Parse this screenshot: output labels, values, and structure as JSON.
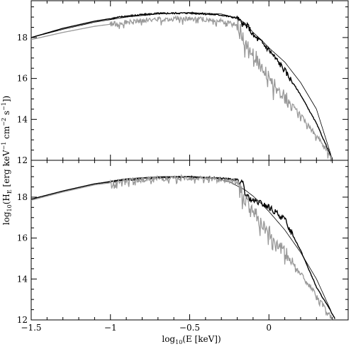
{
  "chart_data": [
    {
      "type": "line",
      "panel": "top",
      "xlim": [
        -1.5,
        0.5
      ],
      "ylim": [
        12,
        19.8
      ],
      "xticks": [
        -1.5,
        -1,
        -0.5,
        0
      ],
      "yticks": [
        12,
        14,
        16,
        18
      ],
      "ytick_labels": [
        "12",
        "14",
        "16",
        "18"
      ],
      "series": [
        {
          "style": "smooth-thin-black",
          "color": "#000000",
          "x": [
            -1.5,
            -1.3,
            -1.1,
            -0.9,
            -0.7,
            -0.5,
            -0.3,
            -0.2,
            -0.15,
            -0.1,
            -0.05,
            0,
            0.1,
            0.2,
            0.3,
            0.4
          ],
          "y": [
            18.0,
            18.4,
            18.75,
            19.0,
            19.15,
            19.22,
            19.15,
            18.95,
            18.7,
            18.25,
            17.9,
            17.5,
            16.8,
            15.8,
            14.5,
            12.05
          ]
        },
        {
          "style": "jagged-thick-black",
          "color": "#000000",
          "x": [
            -1.5,
            -1.3,
            -1.1,
            -0.9,
            -0.7,
            -0.5,
            -0.3,
            -0.2,
            -0.16,
            -0.13,
            -0.1,
            -0.05,
            0,
            0.05,
            0.1,
            0.2,
            0.3,
            0.4
          ],
          "y": [
            18.0,
            18.45,
            18.8,
            19.05,
            19.18,
            19.2,
            19.1,
            18.95,
            18.6,
            18.55,
            18.1,
            17.8,
            17.4,
            16.9,
            16.4,
            15.2,
            13.8,
            12.05
          ]
        },
        {
          "style": "jagged-gray",
          "color": "#999999",
          "x": [
            -1.5,
            -1.3,
            -1.1,
            -0.9,
            -0.7,
            -0.5,
            -0.3,
            -0.2,
            -0.15,
            -0.1,
            -0.05,
            0,
            0.05,
            0.1,
            0.2,
            0.3,
            0.4
          ],
          "y": [
            17.9,
            18.25,
            18.55,
            18.75,
            18.9,
            18.95,
            18.8,
            18.65,
            17.8,
            17.3,
            16.6,
            16.1,
            15.6,
            15.1,
            14.2,
            13.2,
            12.05
          ]
        }
      ]
    },
    {
      "type": "line",
      "panel": "bottom",
      "xlim": [
        -1.5,
        0.5
      ],
      "ylim": [
        12,
        19.8
      ],
      "xticks": [
        -1.5,
        -1,
        -0.5,
        0
      ],
      "xtick_labels": [
        "−1.5",
        "−1",
        "−0.5",
        "0"
      ],
      "yticks": [
        12,
        14,
        16,
        18
      ],
      "ytick_labels": [
        "12",
        "14",
        "16",
        "18"
      ],
      "xlabel": "log10(E [keV])",
      "ylabel": "log10(HE [erg keV−1 cm−2 s−1])",
      "series": [
        {
          "style": "smooth-thin-black",
          "color": "#000000",
          "x": [
            -1.5,
            -1.3,
            -1.1,
            -0.9,
            -0.7,
            -0.5,
            -0.35,
            -0.25,
            -0.15,
            -0.1,
            -0.05,
            0,
            0.1,
            0.2,
            0.3,
            0.4
          ],
          "y": [
            17.9,
            18.3,
            18.65,
            18.9,
            19.0,
            19.02,
            18.95,
            18.75,
            18.35,
            18.05,
            17.7,
            17.3,
            16.4,
            15.3,
            14.0,
            12.3
          ]
        },
        {
          "style": "jagged-thick-black",
          "color": "#000000",
          "x": [
            -1.5,
            -1.3,
            -1.1,
            -0.9,
            -0.7,
            -0.5,
            -0.35,
            -0.2,
            -0.16,
            -0.15,
            -0.1,
            -0.05,
            0,
            0.05,
            0.1,
            0.2,
            0.3,
            0.4,
            0.42
          ],
          "y": [
            17.9,
            18.3,
            18.65,
            18.85,
            18.95,
            18.98,
            18.95,
            18.85,
            18.6,
            18.1,
            17.8,
            17.7,
            17.5,
            17.2,
            16.9,
            15.4,
            13.6,
            12.3,
            12.0
          ]
        },
        {
          "style": "jagged-gray",
          "color": "#999999",
          "x": [
            -1.5,
            -1.3,
            -1.1,
            -0.9,
            -0.7,
            -0.5,
            -0.35,
            -0.2,
            -0.15,
            -0.1,
            -0.05,
            0,
            0.05,
            0.1,
            0.2,
            0.3,
            0.4
          ],
          "y": [
            17.85,
            18.25,
            18.6,
            18.8,
            18.9,
            18.95,
            18.9,
            18.75,
            17.9,
            17.4,
            16.8,
            16.3,
            15.8,
            15.3,
            14.3,
            13.2,
            12.05
          ]
        }
      ]
    }
  ],
  "labels": {
    "xlabel_prefix": "log",
    "xlabel_sub": "10",
    "xlabel_rest": "(E [keV])",
    "ylabel_prefix": "log",
    "ylabel_sub": "10",
    "ylabel_open": "(H",
    "ylabel_sub2": "E",
    "ylabel_mid": " [erg keV",
    "ylabel_sup1": "−1",
    "ylabel_mid2": " cm",
    "ylabel_sup2": "−2",
    "ylabel_mid3": " s",
    "ylabel_sup3": "−1",
    "ylabel_close": "])"
  }
}
